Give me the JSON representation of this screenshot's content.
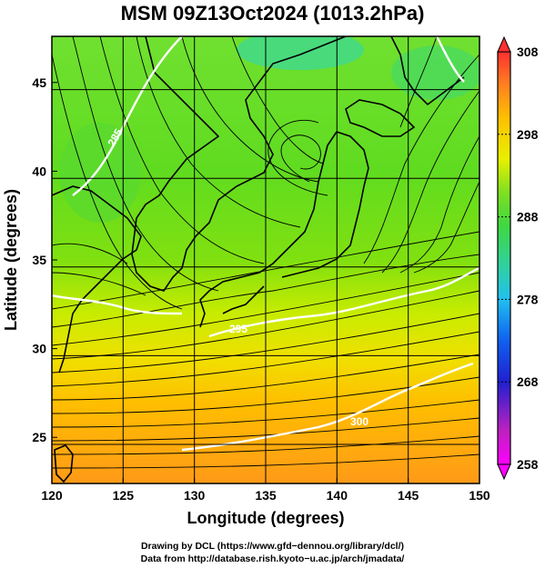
{
  "title": "MSM 09Z13Oct2024 (1013.2hPa)",
  "x_axis": {
    "label": "Longitude (degrees)",
    "ticks": [
      "120",
      "125",
      "130",
      "135",
      "140",
      "145",
      "150"
    ]
  },
  "y_axis": {
    "label": "Latitude  (degrees)",
    "ticks": [
      "25",
      "30",
      "35",
      "40",
      "45"
    ]
  },
  "colorbar": {
    "ticks": [
      "308",
      "298",
      "288",
      "278",
      "268",
      "258"
    ],
    "colors": [
      "#ff00ff",
      "#c020c0",
      "#2020d0",
      "#1060f0",
      "#20c0f0",
      "#30d0a0",
      "#40d840",
      "#60e020",
      "#a0e800",
      "#e8f000",
      "#ffc000",
      "#ff9000",
      "#ff6020",
      "#ff3030"
    ]
  },
  "contours": {
    "color": "#ffffff",
    "labels": [
      "285",
      "290",
      "295",
      "300"
    ]
  },
  "credits": {
    "line1": "Drawing by DCL (https://www.gfd−dennou.org/library/dcl/)",
    "line2": "Data from http://database.rish.kyoto−u.ac.jp/arch/jmadata/"
  },
  "chart_data": {
    "type": "heatmap",
    "title": "MSM 09Z13Oct2024 (1013.2hPa)",
    "xlabel": "Longitude (degrees)",
    "ylabel": "Latitude  (degrees)",
    "xlim": [
      120,
      150
    ],
    "ylim": [
      22.4,
      47.6
    ],
    "color_range": [
      258,
      308
    ],
    "field_sample_degC_K": [
      {
        "lat": 45,
        "values": [
          289,
          290,
          291,
          290,
          289,
          287,
          286
        ]
      },
      {
        "lat": 40,
        "values": [
          289,
          290,
          290,
          290,
          289,
          287,
          287
        ]
      },
      {
        "lat": 35,
        "values": [
          290,
          291,
          292,
          293,
          294,
          294,
          295
        ]
      },
      {
        "lat": 30,
        "values": [
          295,
          296,
          297,
          298,
          298,
          298,
          299
        ]
      },
      {
        "lat": 25,
        "values": [
          300,
          300,
          300,
          300,
          300,
          301,
          301
        ]
      }
    ],
    "grid": true
  }
}
